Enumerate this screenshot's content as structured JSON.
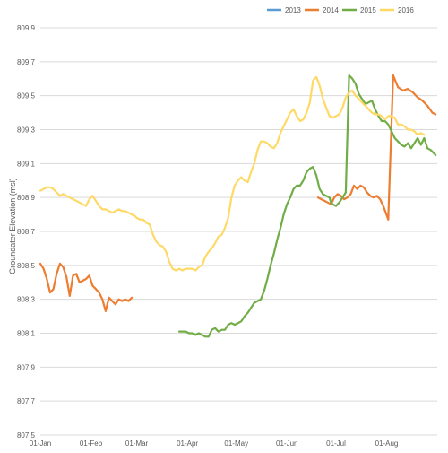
{
  "chart_data": {
    "type": "line",
    "ylabel": "Groundater Elevation (msl)",
    "ylim": [
      807.5,
      809.9
    ],
    "y_ticks": [
      "809.9",
      "809.7",
      "809.5",
      "809.3",
      "809.1",
      "808.9",
      "808.7",
      "808.5",
      "808.3",
      "808.1",
      "807.9",
      "807.7",
      "807.5"
    ],
    "xlim": [
      "01-Jan",
      "31-Aug"
    ],
    "x_ticks": [
      "01-Jan",
      "01-Feb",
      "01-Mar",
      "01-Apr",
      "01-May",
      "01-Jun",
      "01-Jul",
      "01-Aug"
    ],
    "grid": "horizontal",
    "legend_position": "top-right",
    "series": [
      {
        "name": "2013",
        "color": "#5b9bd5",
        "x": [],
        "y": []
      },
      {
        "name": "2014",
        "color": "#ed7d31",
        "x": [
          "01-01",
          "01-03",
          "01-05",
          "01-07",
          "01-09",
          "01-11",
          "01-13",
          "01-15",
          "01-17",
          "01-19",
          "01-21",
          "01-23",
          "01-25",
          "01-27",
          "01-29",
          "01-31",
          "02-02",
          "02-04",
          "02-06",
          "02-08",
          "02-10",
          "02-12",
          "02-14",
          "02-16",
          "02-18",
          "02-20",
          "02-22",
          "02-24",
          "02-26",
          "06-20",
          "06-22",
          "06-24",
          "06-26",
          "06-28",
          "06-30",
          "07-02",
          "07-04",
          "07-06",
          "07-08",
          "07-10",
          "07-12",
          "07-14",
          "07-16",
          "07-18",
          "07-20",
          "07-22",
          "07-24",
          "07-26",
          "07-28",
          "07-30",
          "08-02",
          "08-05",
          "08-08",
          "08-11",
          "08-14",
          "08-17",
          "08-20",
          "08-23",
          "08-26",
          "08-29",
          "08-31"
        ],
        "y": [
          808.51,
          808.48,
          808.42,
          808.34,
          808.36,
          808.45,
          808.51,
          808.49,
          808.43,
          808.32,
          808.44,
          808.45,
          808.4,
          808.41,
          808.42,
          808.44,
          808.38,
          808.36,
          808.34,
          808.3,
          808.23,
          808.31,
          808.29,
          808.27,
          808.3,
          808.29,
          808.3,
          808.29,
          808.31,
          808.9,
          808.89,
          808.88,
          808.87,
          808.86,
          808.9,
          808.92,
          808.91,
          808.89,
          808.9,
          808.92,
          808.97,
          808.95,
          808.97,
          808.96,
          808.93,
          808.91,
          808.9,
          808.91,
          808.89,
          808.85,
          808.77,
          809.62,
          809.55,
          809.53,
          809.54,
          809.52,
          809.49,
          809.47,
          809.44,
          809.4,
          809.39
        ]
      },
      {
        "name": "2015",
        "color": "#70ad47",
        "x": [
          "03-27",
          "03-29",
          "03-31",
          "04-02",
          "04-04",
          "04-06",
          "04-08",
          "04-10",
          "04-12",
          "04-14",
          "04-16",
          "04-18",
          "04-20",
          "04-22",
          "04-24",
          "04-26",
          "04-28",
          "04-30",
          "05-02",
          "05-04",
          "05-06",
          "05-08",
          "05-10",
          "05-12",
          "05-14",
          "05-16",
          "05-18",
          "05-20",
          "05-22",
          "05-24",
          "05-26",
          "05-28",
          "05-30",
          "06-01",
          "06-03",
          "06-05",
          "06-07",
          "06-09",
          "06-11",
          "06-13",
          "06-15",
          "06-17",
          "06-19",
          "06-21",
          "06-23",
          "06-25",
          "06-27",
          "06-28",
          "06-29",
          "07-01",
          "07-03",
          "07-05",
          "07-07",
          "07-09",
          "07-11",
          "07-13",
          "07-15",
          "07-17",
          "07-19",
          "07-21",
          "07-23",
          "07-25",
          "07-27",
          "07-29",
          "07-31",
          "08-02",
          "08-04",
          "08-06",
          "08-08",
          "08-10",
          "08-12",
          "08-14",
          "08-16",
          "08-18",
          "08-20",
          "08-22",
          "08-24",
          "08-26",
          "08-28",
          "08-30",
          "08-31"
        ],
        "y": [
          808.11,
          808.11,
          808.11,
          808.1,
          808.1,
          808.09,
          808.1,
          808.09,
          808.08,
          808.08,
          808.12,
          808.13,
          808.11,
          808.12,
          808.12,
          808.15,
          808.16,
          808.15,
          808.16,
          808.17,
          808.2,
          808.22,
          808.25,
          808.28,
          808.29,
          808.3,
          808.35,
          808.42,
          808.5,
          808.57,
          808.65,
          808.72,
          808.8,
          808.86,
          808.9,
          808.95,
          808.97,
          808.97,
          809.0,
          809.05,
          809.07,
          809.08,
          809.03,
          808.95,
          808.92,
          808.91,
          808.9,
          808.87,
          808.86,
          808.85,
          808.87,
          808.9,
          808.93,
          809.62,
          809.6,
          809.57,
          809.51,
          809.48,
          809.45,
          809.46,
          809.47,
          809.42,
          809.38,
          809.35,
          809.35,
          809.33,
          809.29,
          809.25,
          809.23,
          809.21,
          809.2,
          809.22,
          809.19,
          809.22,
          809.25,
          809.21,
          809.25,
          809.19,
          809.18,
          809.16,
          809.15
        ]
      },
      {
        "name": "2016",
        "color": "#ffd966",
        "x": [
          "01-01",
          "01-03",
          "01-05",
          "01-07",
          "01-09",
          "01-11",
          "01-13",
          "01-15",
          "01-17",
          "01-19",
          "01-21",
          "01-23",
          "01-25",
          "01-27",
          "01-29",
          "01-31",
          "02-02",
          "02-04",
          "02-06",
          "02-08",
          "02-10",
          "02-12",
          "02-14",
          "02-16",
          "02-18",
          "02-20",
          "02-22",
          "02-24",
          "02-26",
          "02-28",
          "03-01",
          "03-03",
          "03-05",
          "03-07",
          "03-09",
          "03-11",
          "03-13",
          "03-15",
          "03-17",
          "03-19",
          "03-21",
          "03-23",
          "03-25",
          "03-27",
          "03-29",
          "03-31",
          "04-02",
          "04-04",
          "04-06",
          "04-08",
          "04-10",
          "04-12",
          "04-14",
          "04-16",
          "04-18",
          "04-20",
          "04-22",
          "04-24",
          "04-26",
          "04-28",
          "04-30",
          "05-02",
          "05-04",
          "05-06",
          "05-08",
          "05-10",
          "05-12",
          "05-14",
          "05-16",
          "05-18",
          "05-20",
          "05-22",
          "05-24",
          "05-26",
          "05-28",
          "05-30",
          "06-01",
          "06-03",
          "06-05",
          "06-07",
          "06-09",
          "06-11",
          "06-13",
          "06-15",
          "06-17",
          "06-19",
          "06-21",
          "06-23",
          "06-25",
          "06-27",
          "06-29",
          "07-01",
          "07-03",
          "07-05",
          "07-07",
          "07-09",
          "07-11",
          "07-13",
          "07-15",
          "07-17",
          "07-19",
          "07-21",
          "07-23",
          "07-25",
          "07-27",
          "07-29",
          "07-31",
          "08-02",
          "08-04",
          "08-06",
          "08-08",
          "08-10",
          "08-12",
          "08-14",
          "08-16",
          "08-18",
          "08-20",
          "08-22",
          "08-24"
        ],
        "y": [
          808.94,
          808.95,
          808.96,
          808.96,
          808.95,
          808.93,
          808.91,
          808.92,
          808.91,
          808.9,
          808.89,
          808.88,
          808.87,
          808.86,
          808.85,
          808.89,
          808.91,
          808.88,
          808.85,
          808.83,
          808.83,
          808.82,
          808.81,
          808.82,
          808.83,
          808.82,
          808.82,
          808.81,
          808.8,
          808.79,
          808.78,
          808.77,
          808.77,
          808.75,
          808.74,
          808.68,
          808.64,
          808.62,
          808.61,
          808.58,
          808.52,
          808.48,
          808.47,
          808.48,
          808.47,
          808.48,
          808.48,
          808.48,
          808.47,
          808.49,
          808.5,
          808.55,
          808.58,
          808.6,
          808.63,
          808.67,
          808.68,
          808.72,
          808.78,
          808.9,
          808.97,
          809.0,
          809.02,
          809.0,
          808.99,
          809.05,
          809.1,
          809.18,
          809.23,
          809.23,
          809.22,
          809.2,
          809.19,
          809.22,
          809.28,
          809.32,
          809.36,
          809.4,
          809.42,
          809.38,
          809.35,
          809.36,
          809.4,
          809.46,
          809.59,
          809.61,
          809.56,
          809.48,
          809.43,
          809.38,
          809.37,
          809.38,
          809.39,
          809.43,
          809.49,
          809.52,
          809.53,
          809.5,
          809.48,
          809.46,
          809.44,
          809.42,
          809.4,
          809.39,
          809.39,
          809.38,
          809.36,
          809.38,
          809.38,
          809.37,
          809.33,
          809.33,
          809.32,
          809.3,
          809.3,
          809.29,
          809.27,
          809.28,
          809.27
        ]
      }
    ]
  }
}
